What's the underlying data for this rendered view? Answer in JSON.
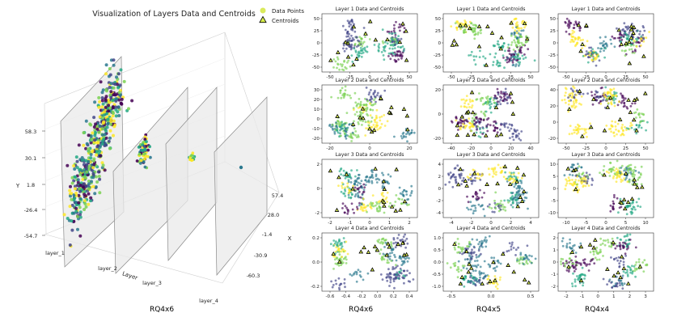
{
  "chart_data": [
    {
      "type": "scatter3d",
      "title": "Visualization of Layers Data and Centroids",
      "legend": [
        "Data Points",
        "Centroids"
      ],
      "legend_position": "top-right",
      "xlabel": "Layer",
      "ylabel": "Y",
      "zlabel": "X",
      "x_categories": [
        "layer_1",
        "layer_2",
        "layer_3",
        "layer_4"
      ],
      "y_ticks": [
        "58.3",
        "30.1",
        "1.8",
        "-26.4",
        "-54.7"
      ],
      "z_ticks": [
        "57.4",
        "28.0",
        "-1.4",
        "-30.9",
        "-60.3"
      ],
      "caption": "RQ4x6"
    },
    {
      "type": "scatter_grid",
      "columns": [
        {
          "caption": "RQ4x6",
          "panels": [
            {
              "title": "Layer 1 Data and Centroids",
              "xticks": [
                "-50",
                "-25",
                "0",
                "25",
                "50"
              ],
              "yticks": [
                "50",
                "25",
                "0",
                "-25",
                "-50"
              ]
            },
            {
              "title": "Layer 2 Data and Centroids",
              "xticks": [
                "-20",
                "0",
                "20"
              ],
              "yticks": [
                "30",
                "20",
                "10",
                "0",
                "-10",
                "-20"
              ]
            },
            {
              "title": "Layer 3 Data and Centroids",
              "xticks": [
                "-2",
                "-1",
                "0",
                "1",
                "2"
              ],
              "yticks": [
                "2",
                "0",
                "-2"
              ]
            },
            {
              "title": "Layer 4 Data and Centroids",
              "xticks": [
                "-0.6",
                "-0.4",
                "-0.2",
                "0.0",
                "0.2",
                "0.4"
              ],
              "yticks": [
                "0.2",
                "0.0",
                "-0.2"
              ]
            }
          ]
        },
        {
          "caption": "RQ4x5",
          "panels": [
            {
              "title": "Layer 1 Data and Centroids",
              "xticks": [
                "-50",
                "-25",
                "0",
                "25",
                "50"
              ],
              "yticks": [
                "50",
                "25",
                "0",
                "-25",
                "-50"
              ]
            },
            {
              "title": "Layer 2 Data and Centroids",
              "xticks": [
                "-40",
                "-20",
                "0",
                "20",
                "40"
              ],
              "yticks": [
                "20",
                "0",
                "-20"
              ]
            },
            {
              "title": "Layer 3 Data and Centroids",
              "xticks": [
                "-4",
                "-2",
                "0",
                "2",
                "4"
              ],
              "yticks": [
                "4",
                "2",
                "0",
                "-2",
                "-4"
              ]
            },
            {
              "title": "Layer 4 Data and Centroids",
              "xticks": [
                "-0.5",
                "0.0",
                "0.5"
              ],
              "yticks": [
                "1.0",
                "0.5",
                "0.0",
                "-0.5",
                "-1.0"
              ]
            }
          ]
        },
        {
          "caption": "RQ4x4",
          "panels": [
            {
              "title": "Layer 1 Data and Centroids",
              "xticks": [
                "-50",
                "-25",
                "0",
                "25",
                "50"
              ],
              "yticks": [
                "50",
                "25",
                "0",
                "-25",
                "-50"
              ]
            },
            {
              "title": "Layer 2 Data and Centroids",
              "xticks": [
                "-50",
                "-25",
                "0",
                "25",
                "50"
              ],
              "yticks": [
                "40",
                "20",
                "0",
                "-20"
              ]
            },
            {
              "title": "Layer 3 Data and Centroids",
              "xticks": [
                "-10",
                "-5",
                "0",
                "5",
                "10"
              ],
              "yticks": [
                "10",
                "5",
                "0",
                "-5",
                "-10"
              ]
            },
            {
              "title": "Layer 4 Data and Centroids",
              "xticks": [
                "-2",
                "-1",
                "0",
                "1",
                "2",
                "3"
              ],
              "yticks": [
                "2",
                "1",
                "0",
                "-1",
                "-2"
              ]
            }
          ]
        }
      ]
    }
  ],
  "colors": {
    "palette": [
      "#440154",
      "#414487",
      "#2a788e",
      "#22a884",
      "#7ad151",
      "#fde725"
    ],
    "centroid_fill": "#d9ef4a",
    "centroid_stroke": "#000000",
    "plane_fill": "#e9e9e9",
    "plane_stroke": "#8a8a8a"
  }
}
